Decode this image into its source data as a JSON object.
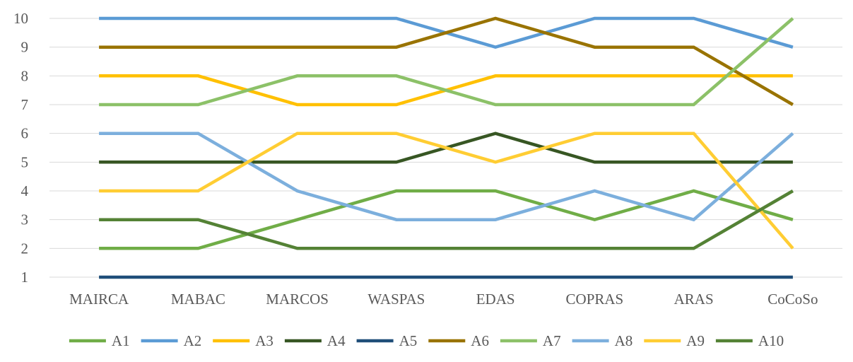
{
  "chart_data": {
    "type": "line",
    "categories": [
      "MAIRCA",
      "MABAC",
      "MARCOS",
      "WASPAS",
      "EDAS",
      "COPRAS",
      "ARAS",
      "CoCoSo"
    ],
    "ylim": [
      1,
      10
    ],
    "yticks": [
      1,
      2,
      3,
      4,
      5,
      6,
      7,
      8,
      9,
      10
    ],
    "grid": true,
    "legend": "bottom",
    "series": [
      {
        "name": "A1",
        "color": "#70AD47",
        "values": [
          2,
          2,
          3,
          4,
          4,
          3,
          4,
          3
        ]
      },
      {
        "name": "A2",
        "color": "#5B9BD5",
        "values": [
          10,
          10,
          10,
          10,
          9,
          10,
          10,
          9
        ]
      },
      {
        "name": "A3",
        "color": "#FFC000",
        "values": [
          8,
          8,
          7,
          7,
          8,
          8,
          8,
          8
        ]
      },
      {
        "name": "A4",
        "color": "#375623",
        "values": [
          5,
          5,
          5,
          5,
          6,
          5,
          5,
          5
        ]
      },
      {
        "name": "A5",
        "color": "#1F4E79",
        "values": [
          1,
          1,
          1,
          1,
          1,
          1,
          1,
          1
        ]
      },
      {
        "name": "A6",
        "color": "#997300",
        "values": [
          9,
          9,
          9,
          9,
          10,
          9,
          9,
          7
        ]
      },
      {
        "name": "A7",
        "color": "#8CC168",
        "values": [
          7,
          7,
          8,
          8,
          7,
          7,
          7,
          10
        ]
      },
      {
        "name": "A8",
        "color": "#7CAFDD",
        "values": [
          6,
          6,
          4,
          3,
          3,
          4,
          3,
          6
        ]
      },
      {
        "name": "A9",
        "color": "#FFCD33",
        "values": [
          4,
          4,
          6,
          6,
          5,
          6,
          6,
          2
        ]
      },
      {
        "name": "A10",
        "color": "#548235",
        "values": [
          3,
          3,
          2,
          2,
          2,
          2,
          2,
          4
        ]
      }
    ]
  }
}
